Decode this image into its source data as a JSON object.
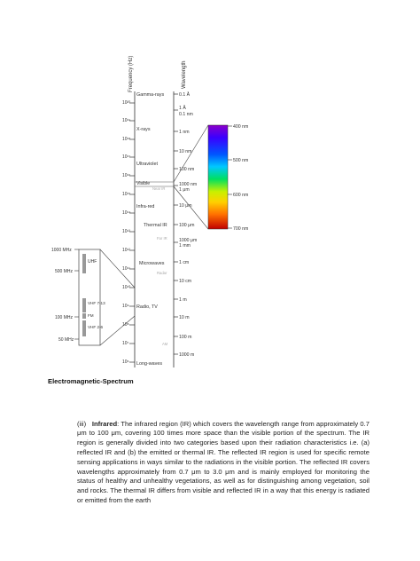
{
  "figure": {
    "axes": {
      "frequency_label": "Frequency (Hz)",
      "wavelength_label": "Wavelength"
    },
    "frequency_ticks": [
      "10²⁰",
      "10¹⁹",
      "10¹⁸",
      "10¹⁷",
      "10¹⁶",
      "10¹⁵",
      "10¹⁴",
      "10¹³",
      "10¹²",
      "10¹¹",
      "10¹⁰",
      "10⁹",
      "10⁸",
      "10⁷",
      "10⁶"
    ],
    "wavelength_ticks": [
      "0.1 Å",
      "1 Å",
      "0.1 nm",
      "1 nm",
      "10 nm",
      "100 nm",
      "1000 nm",
      "1 μm",
      "10 μm",
      "100 μm",
      "1000 μm",
      "1 mm",
      "1 cm",
      "10 cm",
      "1 m",
      "10 m",
      "100 m",
      "1000 m"
    ],
    "regions": [
      "Gamma-rays",
      "X-rays",
      "Ultraviolet",
      "Visible",
      "Near IR",
      "Infra-red",
      "Thermal IR",
      "Far IR",
      "Microwaves",
      "Radar",
      "Radio, TV",
      "AM",
      "Long-waves"
    ],
    "radio_inset": {
      "ticks": [
        "1000 MHz",
        "500 MHz",
        "100 MHz",
        "50 MHz"
      ],
      "bands": [
        "UHF",
        "VHF 7-13",
        "FM",
        "VHF 2-6"
      ]
    },
    "visible_bar": {
      "ticks": [
        "400 nm",
        "500 nm",
        "600 nm",
        "700 nm"
      ]
    }
  },
  "caption": "Electromagnetic-Spectrum",
  "paragraph": {
    "number": "(iii)",
    "term": "Infrared",
    "text": ": The infrared region (IR) which covers the wavelength range from approximately 0.7 μm to 100 μm, covering 100 times more space than the visible portion of the spectrum. The IR region is generally divided into two categories based upon their radiation characteristics i.e. (a) reflected IR and (b) the emitted or thermal IR. The reflected IR region is used for specific remote sensing applications in ways similar to the radiations in the visible portion. The reflected IR covers wavelengths approximately from 0.7 μm to 3.0 μm and is mainly employed for monitoring the status of healthy and unhealthy vegetations, as well as for distinguishing among vegetation, soil and rocks. The thermal IR differs from visible and reflected IR in a way that this energy is radiated or emitted from the earth"
  },
  "colors": {
    "spectrum": [
      "#8a00c8",
      "#3a00ff",
      "#0055ff",
      "#00c8ff",
      "#00e060",
      "#c8f000",
      "#ffd000",
      "#ff7000",
      "#e00000",
      "#b00000"
    ]
  }
}
